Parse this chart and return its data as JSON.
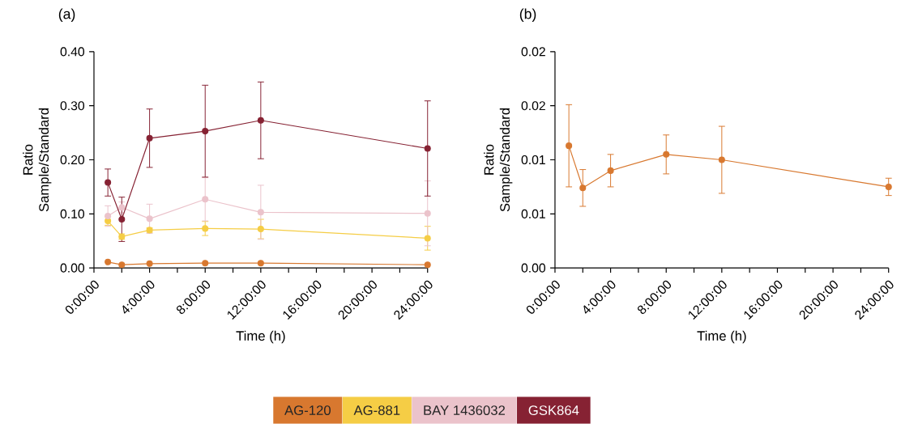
{
  "chart_data": [
    {
      "type": "line",
      "title": "(a)",
      "xlabel": "Time (h)",
      "ylabel": "Ratio Sample/Standard",
      "x": [
        1,
        2,
        4,
        8,
        12,
        24
      ],
      "xlim": [
        0,
        24
      ],
      "xticks": [
        {
          "value": 0,
          "label": "0:00:00"
        },
        {
          "value": 2,
          "label": null
        },
        {
          "value": 4,
          "label": "4:00:00"
        },
        {
          "value": 6,
          "label": null
        },
        {
          "value": 8,
          "label": "8:00:00"
        },
        {
          "value": 10,
          "label": null
        },
        {
          "value": 12,
          "label": "12:00:00"
        },
        {
          "value": 14,
          "label": null
        },
        {
          "value": 16,
          "label": "16:00:00"
        },
        {
          "value": 18,
          "label": null
        },
        {
          "value": 20,
          "label": "20:00:00"
        },
        {
          "value": 22,
          "label": null
        },
        {
          "value": 24,
          "label": "24:00:00"
        }
      ],
      "ylim": [
        0,
        0.4
      ],
      "yticks": [
        {
          "value": 0,
          "label": "0.00"
        },
        {
          "value": 0.1,
          "label": "0.10"
        },
        {
          "value": 0.2,
          "label": "0.20"
        },
        {
          "value": 0.3,
          "label": "0.30"
        },
        {
          "value": 0.4,
          "label": "0.40"
        }
      ],
      "marker": "circle",
      "legend": "bottom",
      "series": [
        {
          "name": "AG-120",
          "color": "#d8782f",
          "values": [
            0.011,
            0.006,
            0.008,
            0.009,
            0.009,
            0.006
          ]
        },
        {
          "name": "AG-881",
          "color": "#f5cd45",
          "values": [
            0.087,
            0.058,
            0.07,
            0.073,
            0.072,
            0.055
          ],
          "errors": [
            0.008,
            0.005,
            0.004,
            0.013,
            0.018,
            0.022
          ]
        },
        {
          "name": "BAY 1436032",
          "color": "#ebc3cb",
          "values": [
            0.096,
            0.112,
            0.091,
            0.127,
            0.103,
            0.101
          ],
          "errors": [
            0.019,
            0.01,
            0.027,
            0.04,
            0.05,
            0.06
          ]
        },
        {
          "name": "GSK864",
          "color": "#862233",
          "values": [
            0.158,
            0.09,
            0.24,
            0.253,
            0.273,
            0.221
          ],
          "errors": [
            0.025,
            0.041,
            0.054,
            0.085,
            0.071,
            0.088
          ]
        }
      ]
    },
    {
      "type": "line",
      "title": "(b)",
      "xlabel": "Time (h)",
      "ylabel": "Ratio Sample/Standard",
      "x": [
        1,
        2,
        4,
        8,
        12,
        24
      ],
      "xlim": [
        0,
        24
      ],
      "xticks": [
        {
          "value": 0,
          "label": "0:00:00"
        },
        {
          "value": 2,
          "label": null
        },
        {
          "value": 4,
          "label": "4:00:00"
        },
        {
          "value": 6,
          "label": null
        },
        {
          "value": 8,
          "label": "8:00:00"
        },
        {
          "value": 10,
          "label": null
        },
        {
          "value": 12,
          "label": "12:00:00"
        },
        {
          "value": 14,
          "label": null
        },
        {
          "value": 16,
          "label": "16:00:00"
        },
        {
          "value": 18,
          "label": null
        },
        {
          "value": 20,
          "label": "20:00:00"
        },
        {
          "value": 22,
          "label": null
        },
        {
          "value": 24,
          "label": "24:00:00"
        }
      ],
      "ylim": [
        0,
        0.02
      ],
      "yticks": [
        {
          "value": 0,
          "label": "0.00"
        },
        {
          "value": 0.005,
          "label": "0.01"
        },
        {
          "value": 0.01,
          "label": "0.01"
        },
        {
          "value": 0.015,
          "label": "0.02"
        },
        {
          "value": 0.02,
          "label": "0.02"
        }
      ],
      "marker": "circle",
      "series": [
        {
          "color": "#d8782f",
          "values": [
            0.0113,
            0.0074,
            0.009,
            0.0105,
            0.01,
            0.0075
          ],
          "errors": [
            0.0038,
            0.0017,
            0.0015,
            0.0018,
            0.0031,
            0.0008
          ]
        }
      ]
    }
  ]
}
